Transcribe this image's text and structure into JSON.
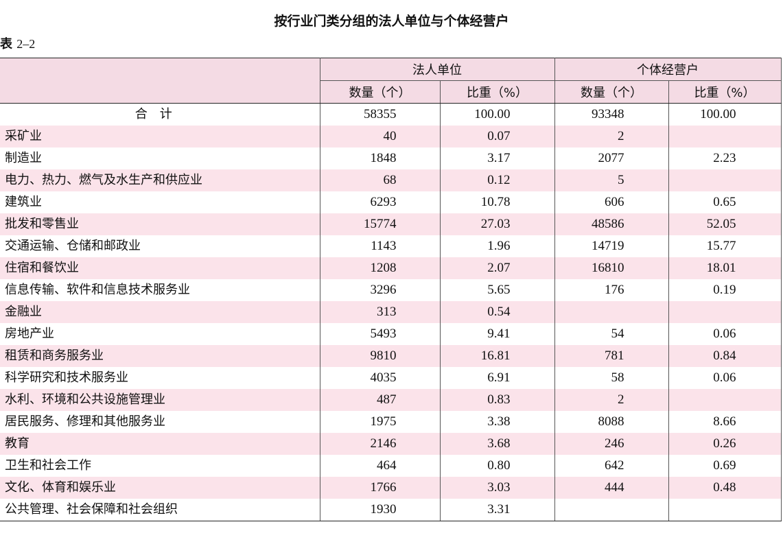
{
  "title": "按行业门类分组的法人单位与个体经营户",
  "table_label_prefix": "表 ",
  "table_label_number": "2–2",
  "headers": {
    "group1": "法人单位",
    "group2": "个体经营户",
    "count": "数量（个）",
    "share": "比重（%）"
  },
  "rows": [
    {
      "name": "合计",
      "legal_count": "58355",
      "legal_share": "100.00",
      "ind_count": "93348",
      "ind_share": "100.00"
    },
    {
      "name": "采矿业",
      "legal_count": "40",
      "legal_share": "0.07",
      "ind_count": "2",
      "ind_share": ""
    },
    {
      "name": "制造业",
      "legal_count": "1848",
      "legal_share": "3.17",
      "ind_count": "2077",
      "ind_share": "2.23"
    },
    {
      "name": "电力、热力、燃气及水生产和供应业",
      "legal_count": "68",
      "legal_share": "0.12",
      "ind_count": "5",
      "ind_share": ""
    },
    {
      "name": "建筑业",
      "legal_count": "6293",
      "legal_share": "10.78",
      "ind_count": "606",
      "ind_share": "0.65"
    },
    {
      "name": "批发和零售业",
      "legal_count": "15774",
      "legal_share": "27.03",
      "ind_count": "48586",
      "ind_share": "52.05"
    },
    {
      "name": "交通运输、仓储和邮政业",
      "legal_count": "1143",
      "legal_share": "1.96",
      "ind_count": "14719",
      "ind_share": "15.77"
    },
    {
      "name": "住宿和餐饮业",
      "legal_count": "1208",
      "legal_share": "2.07",
      "ind_count": "16810",
      "ind_share": "18.01"
    },
    {
      "name": "信息传输、软件和信息技术服务业",
      "legal_count": "3296",
      "legal_share": "5.65",
      "ind_count": "176",
      "ind_share": "0.19"
    },
    {
      "name": "金融业",
      "legal_count": "313",
      "legal_share": "0.54",
      "ind_count": "",
      "ind_share": ""
    },
    {
      "name": "房地产业",
      "legal_count": "5493",
      "legal_share": "9.41",
      "ind_count": "54",
      "ind_share": "0.06"
    },
    {
      "name": "租赁和商务服务业",
      "legal_count": "9810",
      "legal_share": "16.81",
      "ind_count": "781",
      "ind_share": "0.84"
    },
    {
      "name": "科学研究和技术服务业",
      "legal_count": "4035",
      "legal_share": "6.91",
      "ind_count": "58",
      "ind_share": "0.06"
    },
    {
      "name": "水利、环境和公共设施管理业",
      "legal_count": "487",
      "legal_share": "0.83",
      "ind_count": "2",
      "ind_share": ""
    },
    {
      "name": "居民服务、修理和其他服务业",
      "legal_count": "1975",
      "legal_share": "3.38",
      "ind_count": "8088",
      "ind_share": "8.66"
    },
    {
      "name": "教育",
      "legal_count": "2146",
      "legal_share": "3.68",
      "ind_count": "246",
      "ind_share": "0.26"
    },
    {
      "name": "卫生和社会工作",
      "legal_count": "464",
      "legal_share": "0.80",
      "ind_count": "642",
      "ind_share": "0.69"
    },
    {
      "name": "文化、体育和娱乐业",
      "legal_count": "1766",
      "legal_share": "3.03",
      "ind_count": "444",
      "ind_share": "0.48"
    },
    {
      "name": "公共管理、社会保障和社会组织",
      "legal_count": "1930",
      "legal_share": "3.31",
      "ind_count": "",
      "ind_share": ""
    }
  ]
}
